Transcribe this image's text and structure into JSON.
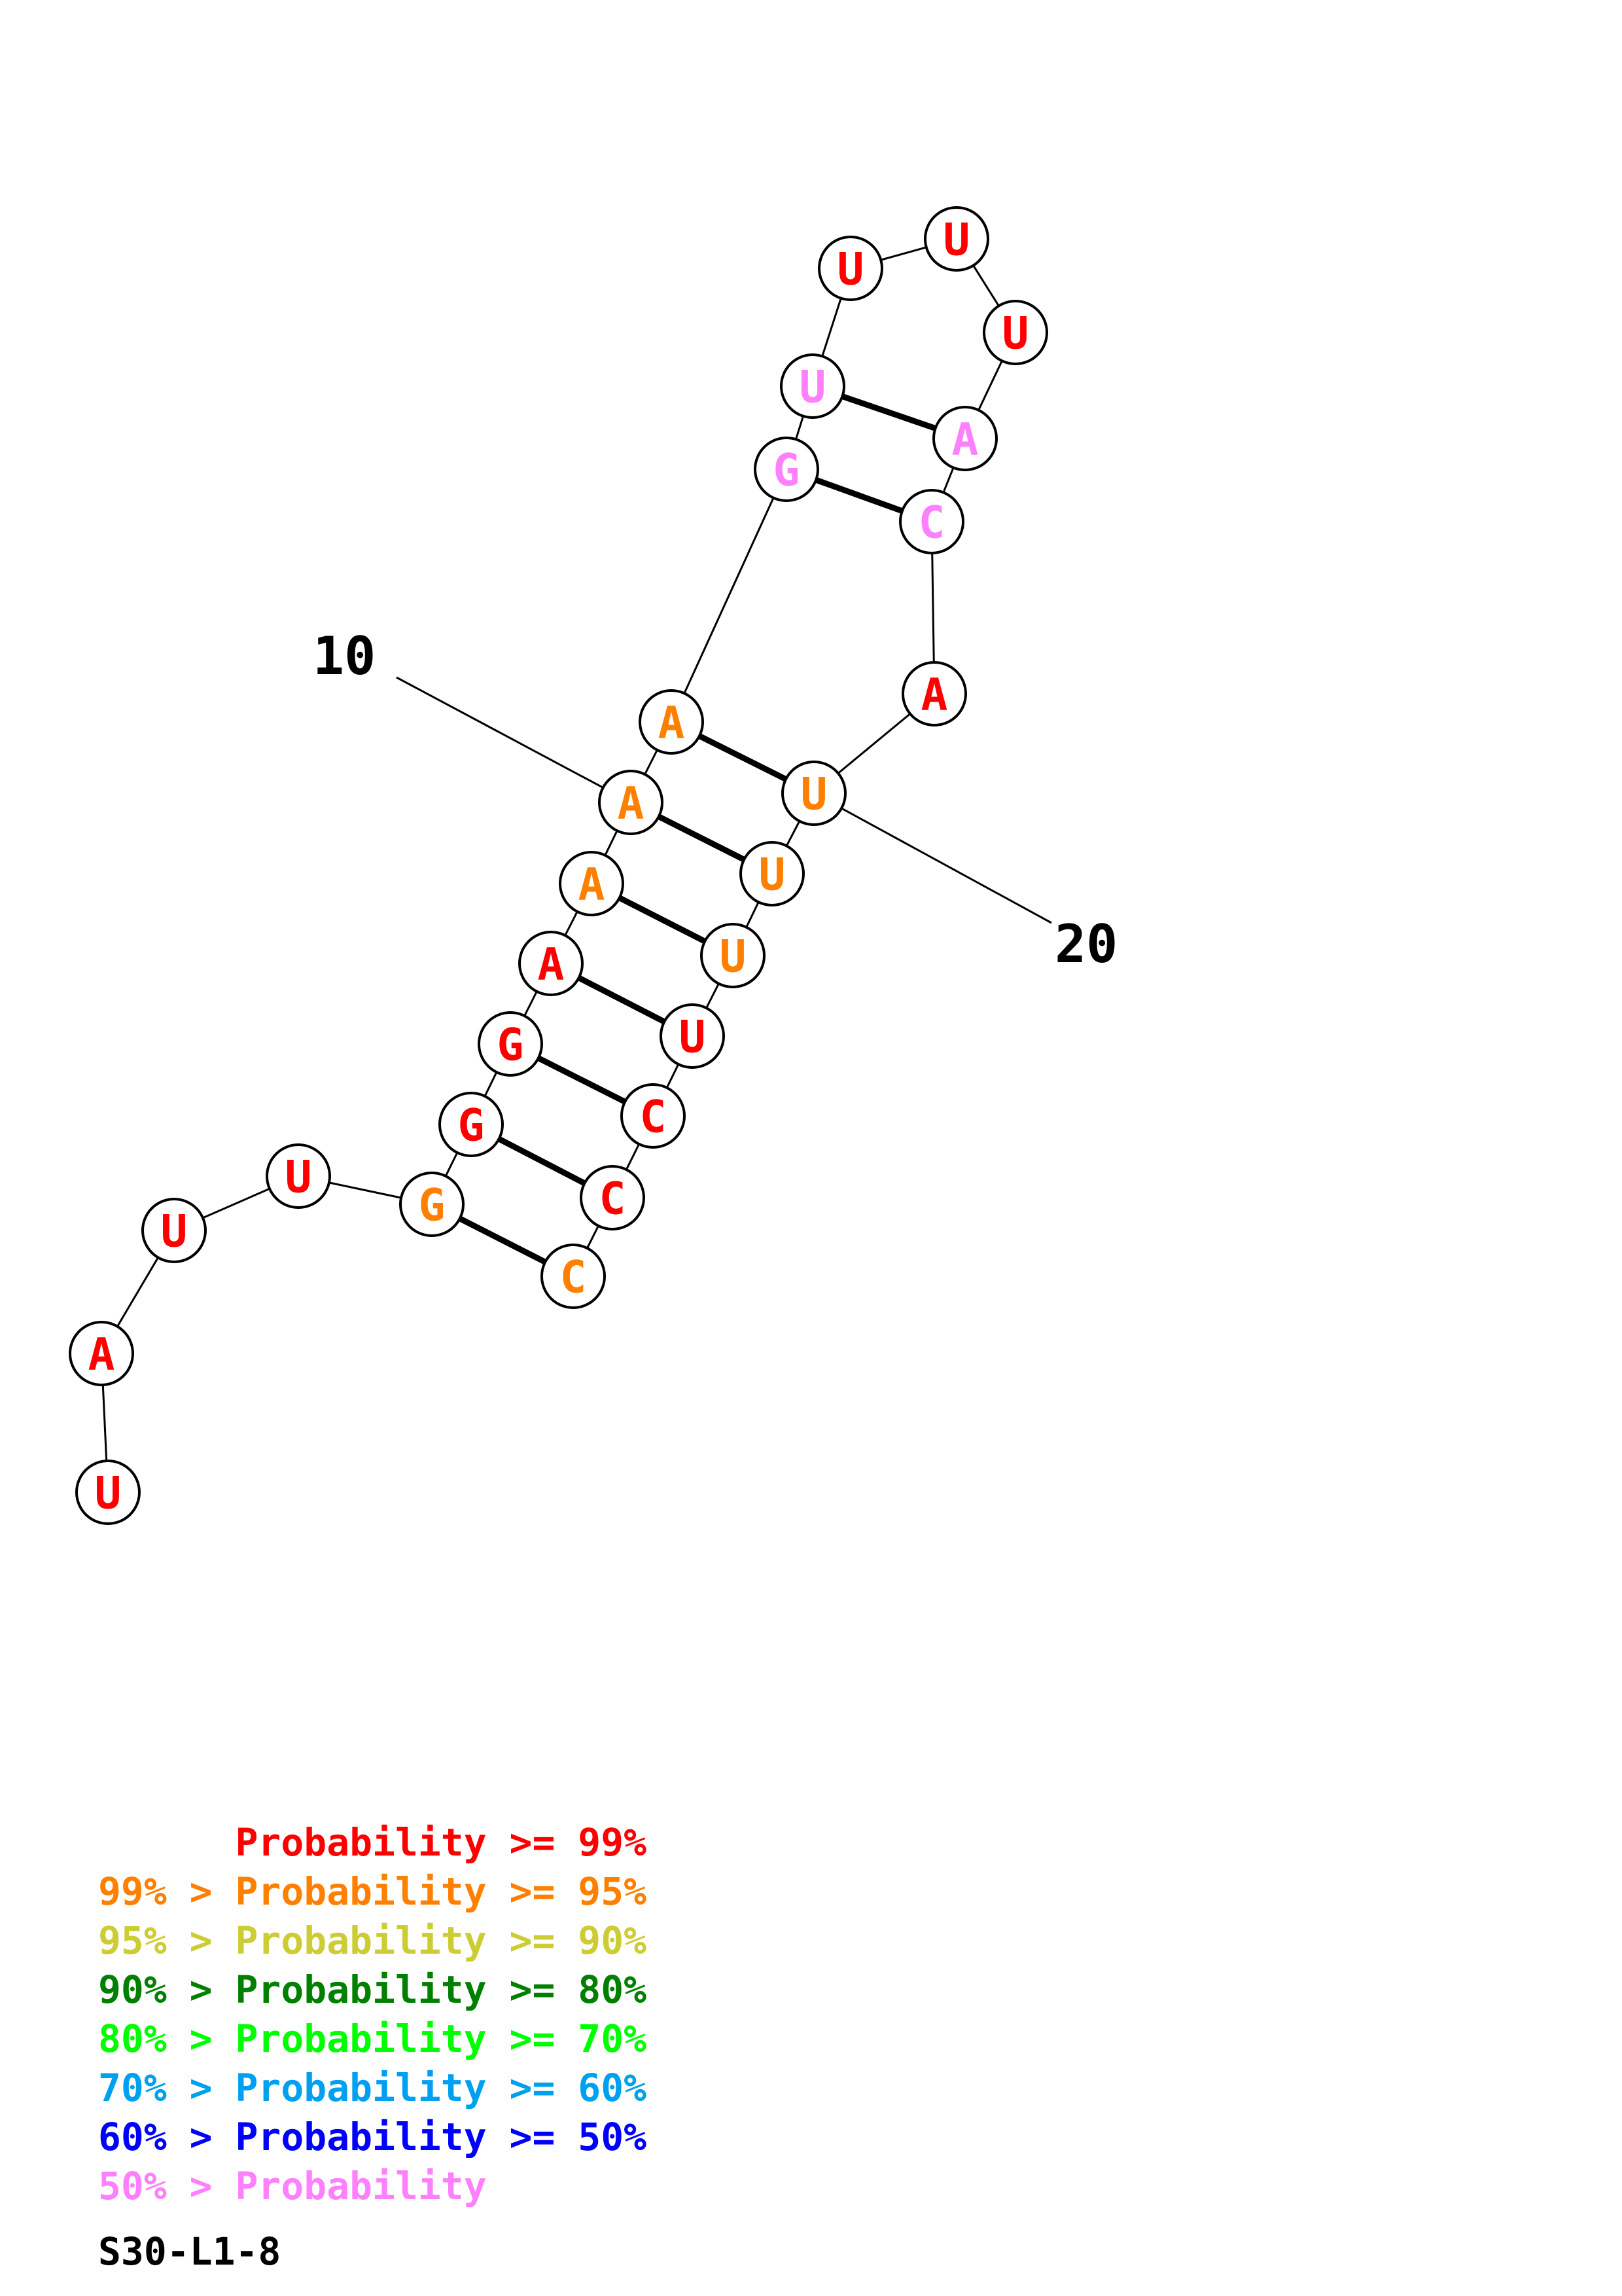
{
  "colors": {
    "p99": "#ff0000",
    "p95": "#ff8000",
    "p90": "#cccc33",
    "p80": "#008000",
    "p70": "#00ff00",
    "p60": "#00a0f0",
    "p50": "#0000ff",
    "plow": "#ff80ff"
  },
  "structure": {
    "nucleotides": [
      {
        "index": 1,
        "base": "U",
        "color": "p99"
      },
      {
        "index": 2,
        "base": "A",
        "color": "p99"
      },
      {
        "index": 3,
        "base": "U",
        "color": "p99"
      },
      {
        "index": 4,
        "base": "U",
        "color": "p99"
      },
      {
        "index": 5,
        "base": "G",
        "color": "p95"
      },
      {
        "index": 6,
        "base": "G",
        "color": "p99"
      },
      {
        "index": 7,
        "base": "G",
        "color": "p99"
      },
      {
        "index": 8,
        "base": "A",
        "color": "p99"
      },
      {
        "index": 9,
        "base": "A",
        "color": "p95"
      },
      {
        "index": 10,
        "base": "A",
        "color": "p95"
      },
      {
        "index": 11,
        "base": "A",
        "color": "p95"
      },
      {
        "index": 12,
        "base": "G",
        "color": "plow"
      },
      {
        "index": 13,
        "base": "U",
        "color": "plow"
      },
      {
        "index": 14,
        "base": "U",
        "color": "p99"
      },
      {
        "index": 15,
        "base": "U",
        "color": "p99"
      },
      {
        "index": 16,
        "base": "U",
        "color": "p99"
      },
      {
        "index": 17,
        "base": "A",
        "color": "plow"
      },
      {
        "index": 18,
        "base": "C",
        "color": "plow"
      },
      {
        "index": 19,
        "base": "A",
        "color": "p99"
      },
      {
        "index": 20,
        "base": "U",
        "color": "p95"
      },
      {
        "index": 21,
        "base": "U",
        "color": "p95"
      },
      {
        "index": 22,
        "base": "U",
        "color": "p95"
      },
      {
        "index": 23,
        "base": "U",
        "color": "p99"
      },
      {
        "index": 24,
        "base": "C",
        "color": "p99"
      },
      {
        "index": 25,
        "base": "C",
        "color": "p99"
      },
      {
        "index": 26,
        "base": "C",
        "color": "p95"
      }
    ],
    "pairs": [
      [
        5,
        26
      ],
      [
        6,
        25
      ],
      [
        7,
        24
      ],
      [
        8,
        23
      ],
      [
        9,
        22
      ],
      [
        10,
        21
      ],
      [
        11,
        20
      ],
      [
        12,
        18
      ],
      [
        13,
        17
      ]
    ],
    "position_labels": [
      {
        "index": 10,
        "text": "10"
      },
      {
        "index": 20,
        "text": "20"
      }
    ]
  },
  "legend": [
    {
      "text": "      Probability >= 99%",
      "color": "p99"
    },
    {
      "text": "99% > Probability >= 95%",
      "color": "p95"
    },
    {
      "text": "95% > Probability >= 90%",
      "color": "p90"
    },
    {
      "text": "90% > Probability >= 80%",
      "color": "p80"
    },
    {
      "text": "80% > Probability >= 70%",
      "color": "p70"
    },
    {
      "text": "70% > Probability >= 60%",
      "color": "p60"
    },
    {
      "text": "60% > Probability >= 50%",
      "color": "p50"
    },
    {
      "text": "50% > Probability",
      "color": "plow"
    }
  ],
  "footer_label": "S30-L1-8"
}
